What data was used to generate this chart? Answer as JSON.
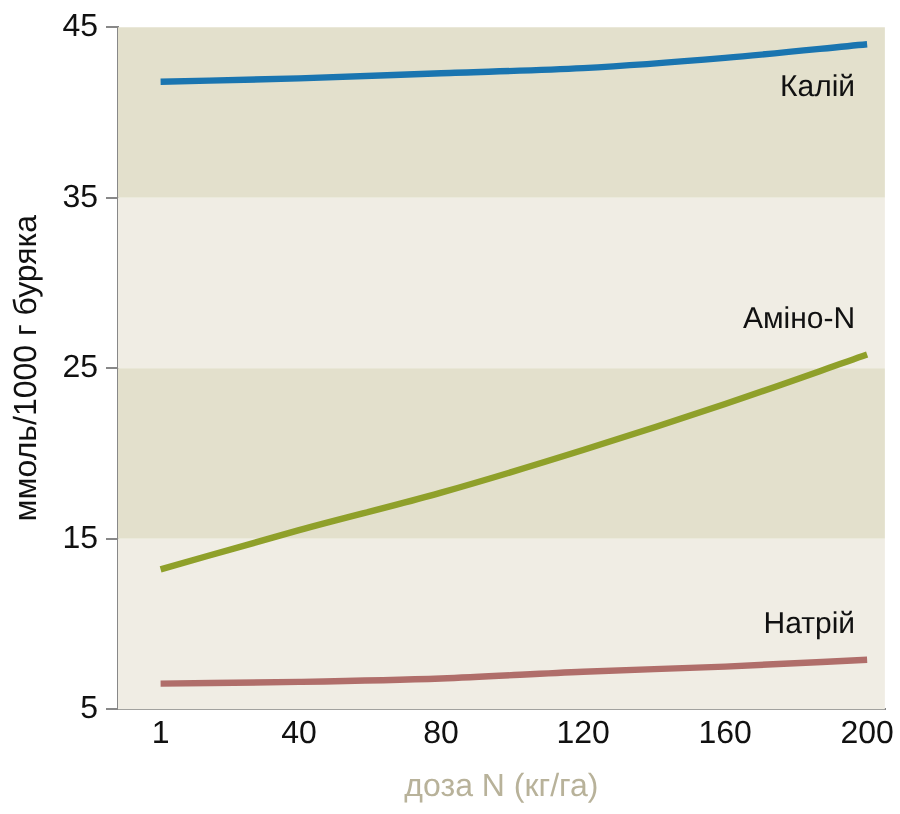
{
  "chart_data": {
    "type": "line",
    "xlabel": "доза N (кг/га)",
    "ylabel": "ммоль/1000 г буряка",
    "x": [
      1,
      40,
      80,
      120,
      160,
      200
    ],
    "xlim": [
      -11,
      205
    ],
    "xticks": [
      1,
      40,
      80,
      120,
      160,
      200
    ],
    "ylim": [
      5,
      45
    ],
    "yticks": [
      5,
      15,
      25,
      35,
      45
    ],
    "grid": false,
    "legend": false,
    "marker": "none",
    "line_style": "solid",
    "bands": [
      {
        "axis": "y",
        "from": 35,
        "to": 45,
        "color": "#e3e0cc"
      },
      {
        "axis": "y",
        "from": 25,
        "to": 35,
        "color": "#f0ede4"
      },
      {
        "axis": "y",
        "from": 15,
        "to": 25,
        "color": "#e3e0cc"
      },
      {
        "axis": "y",
        "from": 5,
        "to": 15,
        "color": "#f0ede4"
      }
    ],
    "series": [
      {
        "name": "Калій",
        "color": "#1a75b0",
        "values": [
          41.8,
          42.0,
          42.3,
          42.6,
          43.2,
          44.0
        ]
      },
      {
        "name": "Аміно-N",
        "color": "#8fa02a",
        "values": [
          13.2,
          15.5,
          17.7,
          20.2,
          22.9,
          25.8
        ]
      },
      {
        "name": "Натрій",
        "color": "#b06e6a",
        "values": [
          6.5,
          6.6,
          6.8,
          7.2,
          7.5,
          7.9
        ]
      }
    ]
  }
}
